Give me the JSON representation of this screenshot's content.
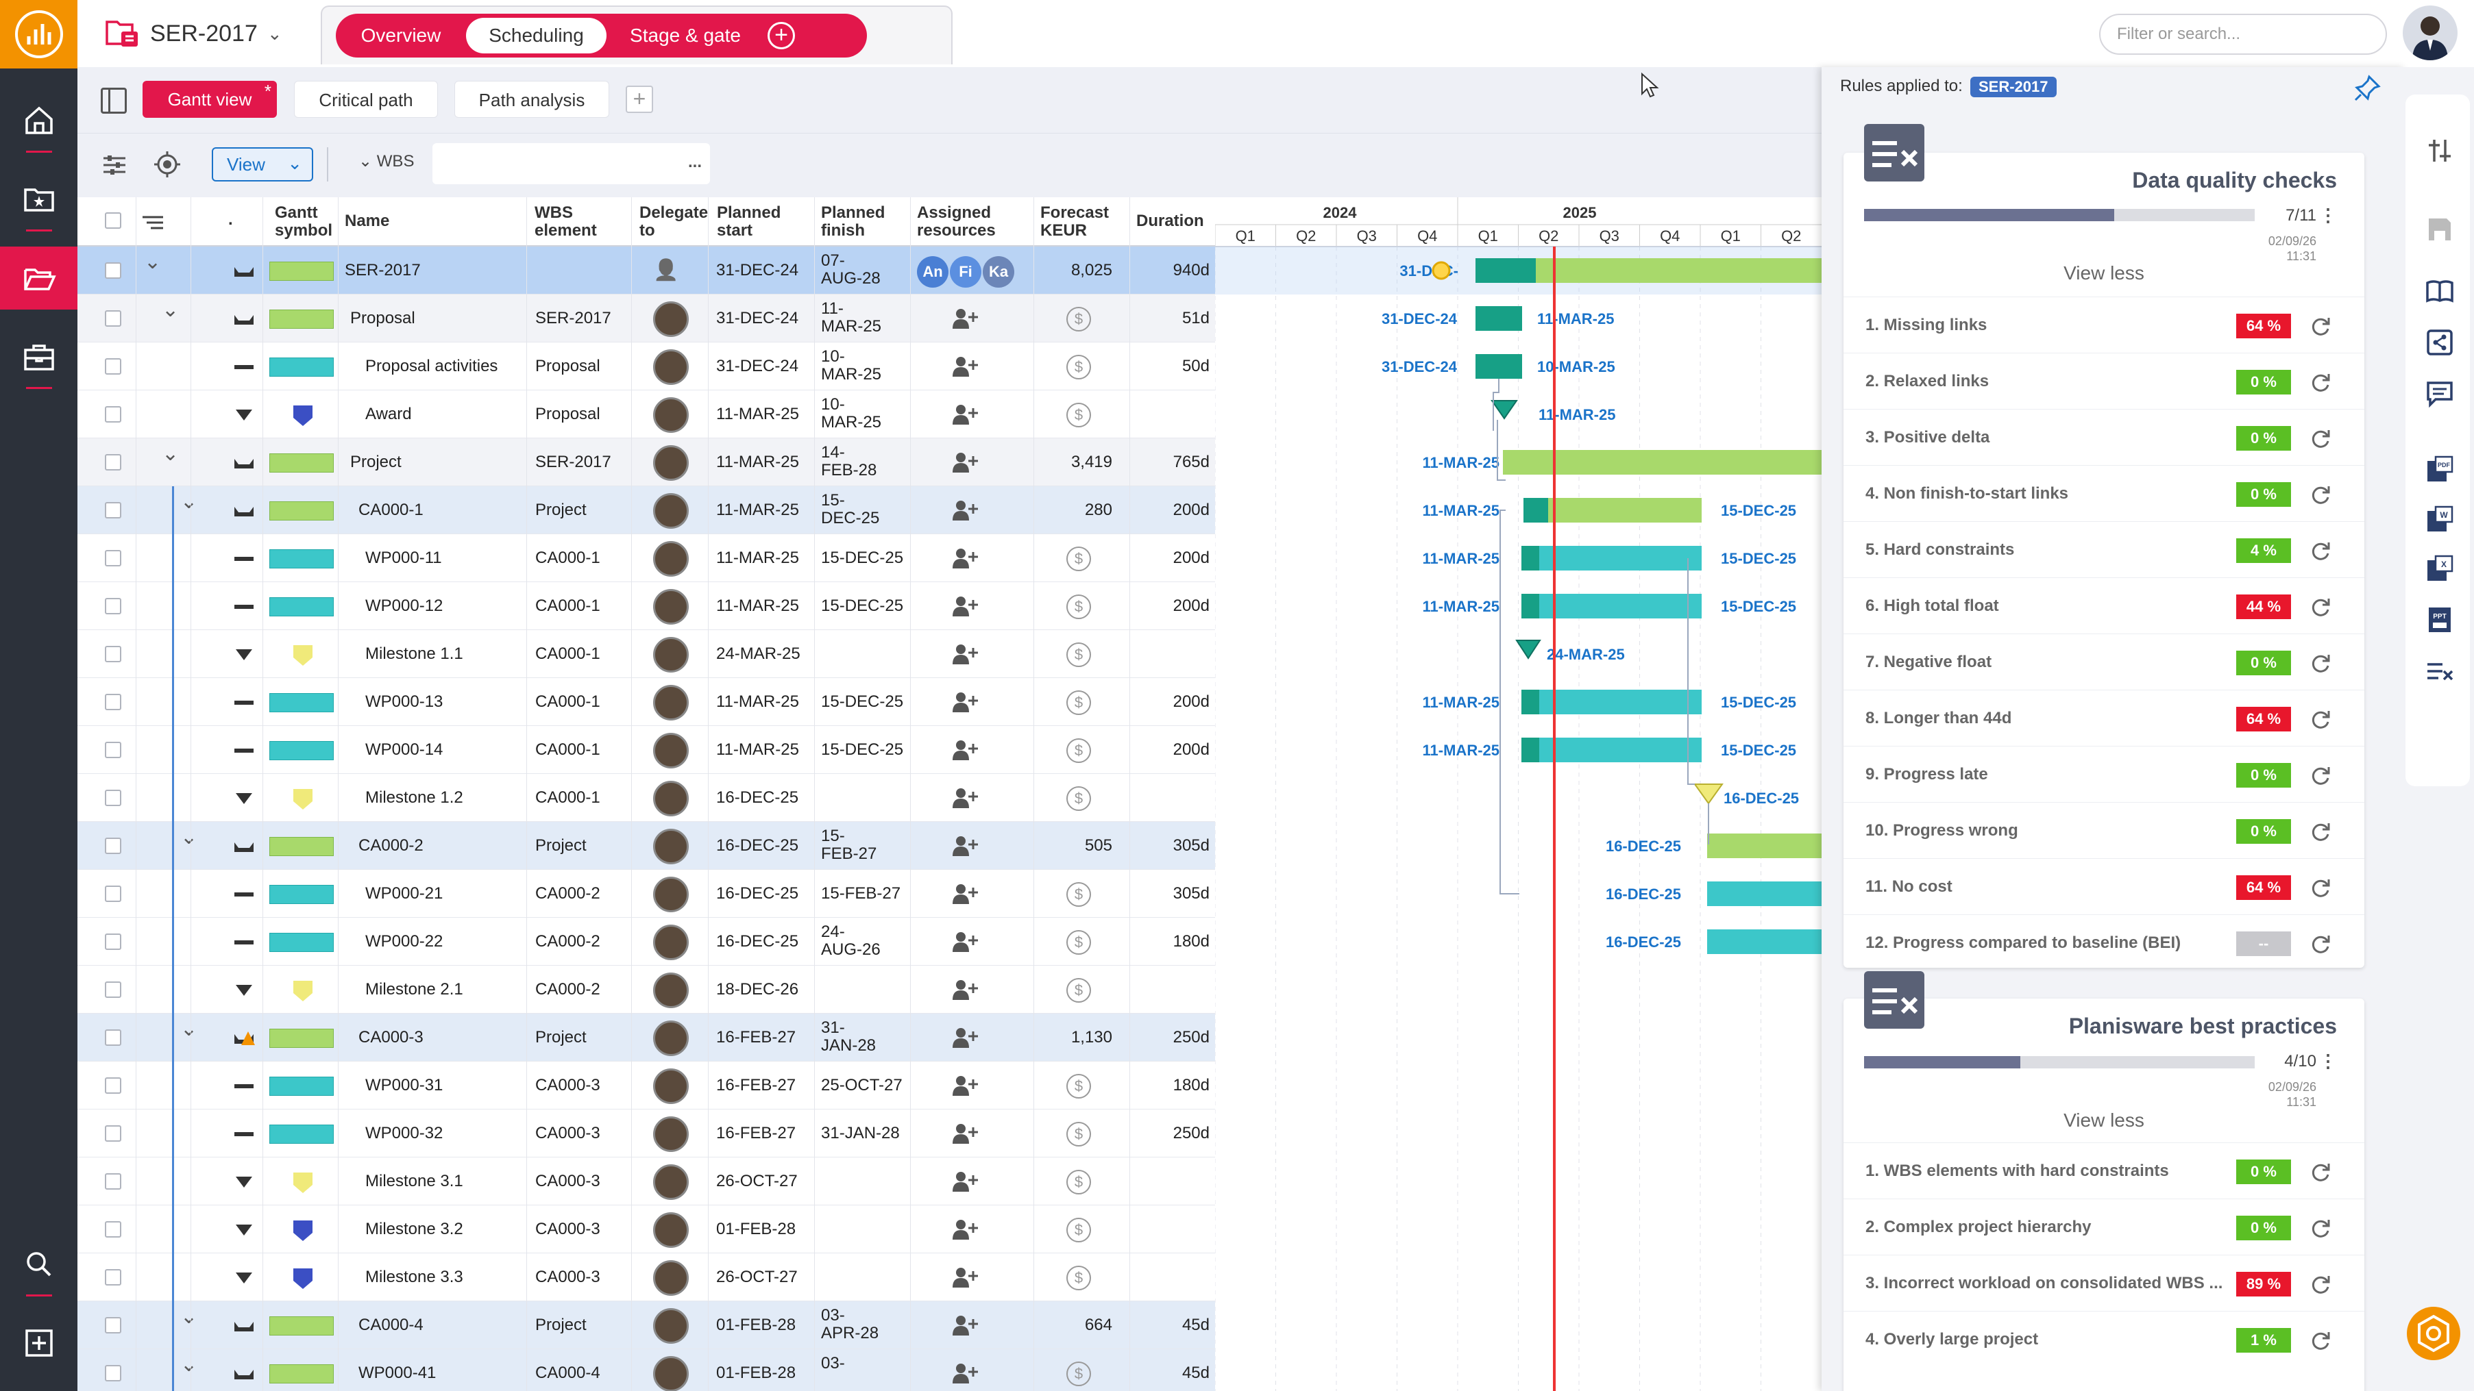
{
  "colors": {
    "accent": "#e2174b",
    "nav": "#2c313a",
    "logo": "#f39200",
    "blue": "#1a73c9",
    "green_bar": "#a8d96b",
    "teal_bar": "#3cc7c9",
    "dark_teal": "#17a086",
    "today": "#e33"
  },
  "header": {
    "project": "SER-2017",
    "tabs": [
      "Overview",
      "Scheduling",
      "Stage & gate"
    ],
    "search_placeholder": "Filter or search..."
  },
  "toolbar": {
    "gantt_view": "Gantt view",
    "gantt_star": "*",
    "critical_path": "Critical path",
    "path_analysis": "Path analysis",
    "view": "View",
    "wbs": "WBS",
    "wbs_dots": "..."
  },
  "grid": {
    "headers": {
      "gantt_symbol": "Gantt\nsymbol",
      "name": "Name",
      "wbs": "WBS\nelement",
      "delegate": "Delegate\nto",
      "planned_start": "Planned\nstart",
      "planned_finish": "Planned\nfinish",
      "assigned": "Assigned\nresources",
      "forecast": "Forecast\nKEUR",
      "duration": "Duration",
      "dot": "."
    },
    "rows": [
      {
        "name": "SER-2017",
        "wbs": "",
        "start": "31-DEC-24",
        "finish": "07-AUG-28",
        "finish2": "07-",
        "finish3": "AUG-28",
        "forecast": "8,025",
        "duration": "940d",
        "type": "root",
        "icon": "summary",
        "swatch": "green",
        "resources": [
          "An",
          "Fi",
          "Ka"
        ]
      },
      {
        "name": "Proposal",
        "wbs": "SER-2017",
        "start": "31-DEC-24",
        "finish2": "11-",
        "finish3": "MAR-25",
        "forecast": "",
        "duration": "51d",
        "type": "lv1",
        "icon": "summary",
        "swatch": "green"
      },
      {
        "name": "Proposal activities",
        "wbs": "Proposal",
        "start": "31-DEC-24",
        "finish2": "10-",
        "finish3": "MAR-25",
        "forecast": "",
        "duration": "50d",
        "type": "task",
        "icon": "task",
        "swatch": "teal"
      },
      {
        "name": "Award",
        "wbs": "Proposal",
        "start": "11-MAR-25",
        "finish2": "10-",
        "finish3": "MAR-25",
        "forecast": "",
        "duration": "",
        "type": "task",
        "icon": "ms",
        "swatch": "ms-blue"
      },
      {
        "name": "Project",
        "wbs": "SER-2017",
        "start": "11-MAR-25",
        "finish2": "14-",
        "finish3": "FEB-28",
        "forecast": "3,419",
        "duration": "765d",
        "type": "lv1",
        "icon": "summary",
        "swatch": "green"
      },
      {
        "name": "CA000-1",
        "wbs": "Project",
        "start": "11-MAR-25",
        "finish2": "15-",
        "finish3": "DEC-25",
        "forecast": "280",
        "duration": "200d",
        "type": "lv2",
        "icon": "summary",
        "swatch": "green"
      },
      {
        "name": "WP000-11",
        "wbs": "CA000-1",
        "start": "11-MAR-25",
        "finish": "15-DEC-25",
        "forecast": "",
        "duration": "200d",
        "type": "task",
        "icon": "task",
        "swatch": "teal"
      },
      {
        "name": "WP000-12",
        "wbs": "CA000-1",
        "start": "11-MAR-25",
        "finish": "15-DEC-25",
        "forecast": "",
        "duration": "200d",
        "type": "task",
        "icon": "task",
        "swatch": "teal"
      },
      {
        "name": "Milestone 1.1",
        "wbs": "CA000-1",
        "start": "24-MAR-25",
        "finish": "",
        "forecast": "",
        "duration": "",
        "type": "task",
        "icon": "ms",
        "swatch": "ms-yellow"
      },
      {
        "name": "WP000-13",
        "wbs": "CA000-1",
        "start": "11-MAR-25",
        "finish": "15-DEC-25",
        "forecast": "",
        "duration": "200d",
        "type": "task",
        "icon": "task",
        "swatch": "teal"
      },
      {
        "name": "WP000-14",
        "wbs": "CA000-1",
        "start": "11-MAR-25",
        "finish": "15-DEC-25",
        "forecast": "",
        "duration": "200d",
        "type": "task",
        "icon": "task",
        "swatch": "teal"
      },
      {
        "name": "Milestone 1.2",
        "wbs": "CA000-1",
        "start": "16-DEC-25",
        "finish": "",
        "forecast": "",
        "duration": "",
        "type": "task",
        "icon": "ms",
        "swatch": "ms-yellow"
      },
      {
        "name": "CA000-2",
        "wbs": "Project",
        "start": "16-DEC-25",
        "finish2": "15-",
        "finish3": "FEB-27",
        "forecast": "505",
        "duration": "305d",
        "type": "lv2",
        "icon": "summary",
        "swatch": "green"
      },
      {
        "name": "WP000-21",
        "wbs": "CA000-2",
        "start": "16-DEC-25",
        "finish": "15-FEB-27",
        "forecast": "",
        "duration": "305d",
        "type": "task",
        "icon": "task",
        "swatch": "teal"
      },
      {
        "name": "WP000-22",
        "wbs": "CA000-2",
        "start": "16-DEC-25",
        "finish2": "24-",
        "finish3": "AUG-26",
        "forecast": "",
        "duration": "180d",
        "type": "task",
        "icon": "task",
        "swatch": "teal"
      },
      {
        "name": "Milestone 2.1",
        "wbs": "CA000-2",
        "start": "18-DEC-26",
        "finish": "",
        "forecast": "",
        "duration": "",
        "type": "task",
        "icon": "ms",
        "swatch": "ms-yellow"
      },
      {
        "name": "CA000-3",
        "wbs": "Project",
        "start": "16-FEB-27",
        "finish2": "31-",
        "finish3": "JAN-28",
        "forecast": "1,130",
        "duration": "250d",
        "type": "lv2",
        "icon": "summary-warn",
        "swatch": "green"
      },
      {
        "name": "WP000-31",
        "wbs": "CA000-3",
        "start": "16-FEB-27",
        "finish": "25-OCT-27",
        "forecast": "",
        "duration": "180d",
        "type": "task",
        "icon": "task",
        "swatch": "teal"
      },
      {
        "name": "WP000-32",
        "wbs": "CA000-3",
        "start": "16-FEB-27",
        "finish": "31-JAN-28",
        "forecast": "",
        "duration": "250d",
        "type": "task",
        "icon": "task",
        "swatch": "teal"
      },
      {
        "name": "Milestone 3.1",
        "wbs": "CA000-3",
        "start": "26-OCT-27",
        "finish": "",
        "forecast": "",
        "duration": "",
        "type": "task",
        "icon": "ms",
        "swatch": "ms-yellow"
      },
      {
        "name": "Milestone 3.2",
        "wbs": "CA000-3",
        "start": "01-FEB-28",
        "finish": "",
        "forecast": "",
        "duration": "",
        "type": "task",
        "icon": "ms",
        "swatch": "ms-blue"
      },
      {
        "name": "Milestone 3.3",
        "wbs": "CA000-3",
        "start": "26-OCT-27",
        "finish": "",
        "forecast": "",
        "duration": "",
        "type": "task",
        "icon": "ms",
        "swatch": "ms-blue"
      },
      {
        "name": "CA000-4",
        "wbs": "Project",
        "start": "01-FEB-28",
        "finish2": "03-",
        "finish3": "APR-28",
        "forecast": "664",
        "duration": "45d",
        "type": "lv2",
        "icon": "summary",
        "swatch": "green"
      },
      {
        "name": "WP000-41",
        "wbs": "CA000-4",
        "start": "01-FEB-28",
        "finish2": "03-",
        "finish3": "",
        "forecast": "",
        "duration": "45d",
        "type": "lv2",
        "icon": "summary",
        "swatch": "green"
      }
    ]
  },
  "gantt": {
    "years": [
      "2024",
      "2025"
    ],
    "quarters": [
      "Q1",
      "Q2",
      "Q3",
      "Q4",
      "Q1",
      "Q2",
      "Q3",
      "Q4",
      "Q1",
      "Q2"
    ],
    "labels": {
      "r0": "31-DEC-",
      "r1s": "31-DEC-24",
      "r1f": "11-MAR-25",
      "r2s": "31-DEC-24",
      "r2f": "10-MAR-25",
      "r3": "11-MAR-25",
      "r4": "11-MAR-25",
      "r5s": "11-MAR-25",
      "r5f": "15-DEC-25",
      "r6s": "11-MAR-25",
      "r6f": "15-DEC-25",
      "r7s": "11-MAR-25",
      "r7f": "15-DEC-25",
      "r8": "24-MAR-25",
      "r9s": "11-MAR-25",
      "r9f": "15-DEC-25",
      "r10s": "11-MAR-25",
      "r10f": "15-DEC-25",
      "r11": "16-DEC-25",
      "r12": "16-DEC-25",
      "r13": "16-DEC-25",
      "r14": "16-DEC-25"
    }
  },
  "rules": {
    "applied_label": "Rules applied to:",
    "applied_tag": "SER-2017",
    "dq": {
      "title": "Data quality checks",
      "count": "7/11",
      "progress": 0.64,
      "date1": "02/09/26",
      "date2": "11:31",
      "view_less": "View less",
      "items": [
        {
          "label": "1. Missing links",
          "pct": "64 %",
          "color": "#e8172c"
        },
        {
          "label": "2. Relaxed links",
          "pct": "0 %",
          "color": "#5bbf24"
        },
        {
          "label": "3. Positive delta",
          "pct": "0 %",
          "color": "#5bbf24"
        },
        {
          "label": "4. Non finish-to-start links",
          "pct": "0 %",
          "color": "#5bbf24"
        },
        {
          "label": "5. Hard constraints",
          "pct": "4 %",
          "color": "#5bbf24"
        },
        {
          "label": "6. High total float",
          "pct": "44 %",
          "color": "#e8172c"
        },
        {
          "label": "7. Negative float",
          "pct": "0 %",
          "color": "#5bbf24"
        },
        {
          "label": "8. Longer than 44d",
          "pct": "64 %",
          "color": "#e8172c"
        },
        {
          "label": "9. Progress late",
          "pct": "0 %",
          "color": "#5bbf24"
        },
        {
          "label": "10. Progress wrong",
          "pct": "0 %",
          "color": "#5bbf24"
        },
        {
          "label": "11. No cost",
          "pct": "64 %",
          "color": "#e8172c"
        },
        {
          "label": "12. Progress compared to baseline (BEI)",
          "pct": "--",
          "color": "#c8c8cc"
        }
      ]
    },
    "bp": {
      "title": "Planisware best practices",
      "count": "4/10",
      "progress": 0.4,
      "date1": "02/09/26",
      "date2": "11:31",
      "view_less": "View less",
      "items": [
        {
          "label": "1. WBS elements with hard constraints",
          "pct": "0 %",
          "color": "#5bbf24"
        },
        {
          "label": "2. Complex project hierarchy",
          "pct": "0 %",
          "color": "#5bbf24"
        },
        {
          "label": "3. Incorrect workload on consolidated WBS ...",
          "pct": "89 %",
          "color": "#e8172c"
        },
        {
          "label": "4. Overly large project",
          "pct": "1 %",
          "color": "#5bbf24"
        }
      ]
    }
  }
}
